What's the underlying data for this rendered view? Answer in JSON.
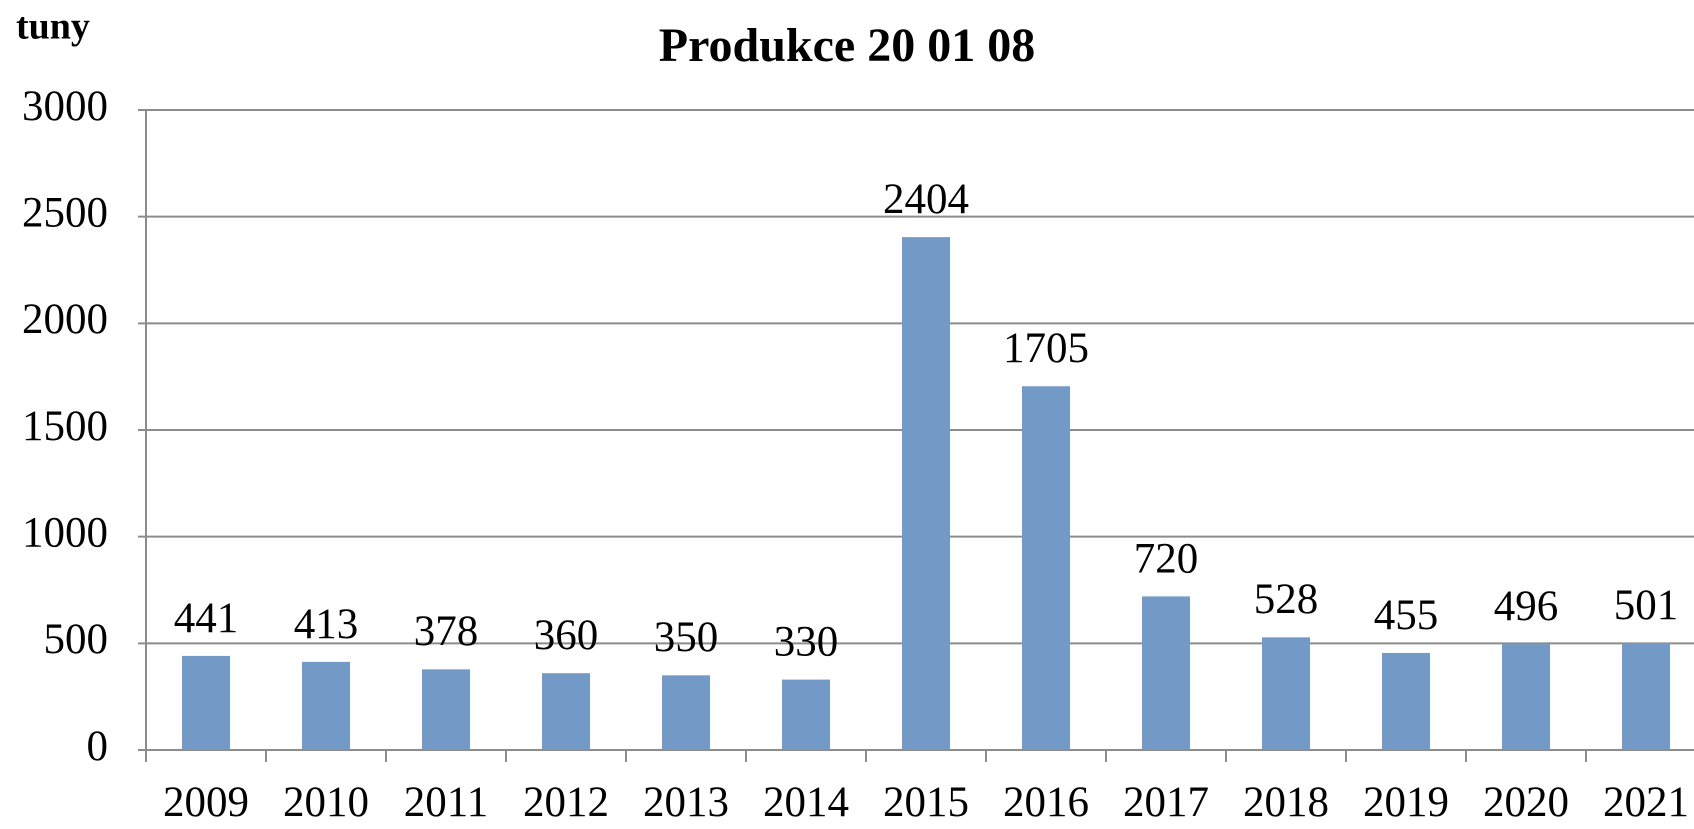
{
  "chart_data": {
    "type": "bar",
    "title": "Produkce 20 01 08",
    "y_label": "tuny",
    "categories": [
      "2009",
      "2010",
      "2011",
      "2012",
      "2013",
      "2014",
      "2015",
      "2016",
      "2017",
      "2018",
      "2019",
      "2020",
      "2021"
    ],
    "values": [
      441,
      413,
      378,
      360,
      350,
      330,
      2404,
      1705,
      720,
      528,
      455,
      496,
      501
    ],
    "color": "#7399c6",
    "ylim": [
      0,
      3000
    ],
    "yticks": [
      0,
      500,
      1000,
      1500,
      2000,
      2500,
      3000
    ],
    "grid": true
  }
}
